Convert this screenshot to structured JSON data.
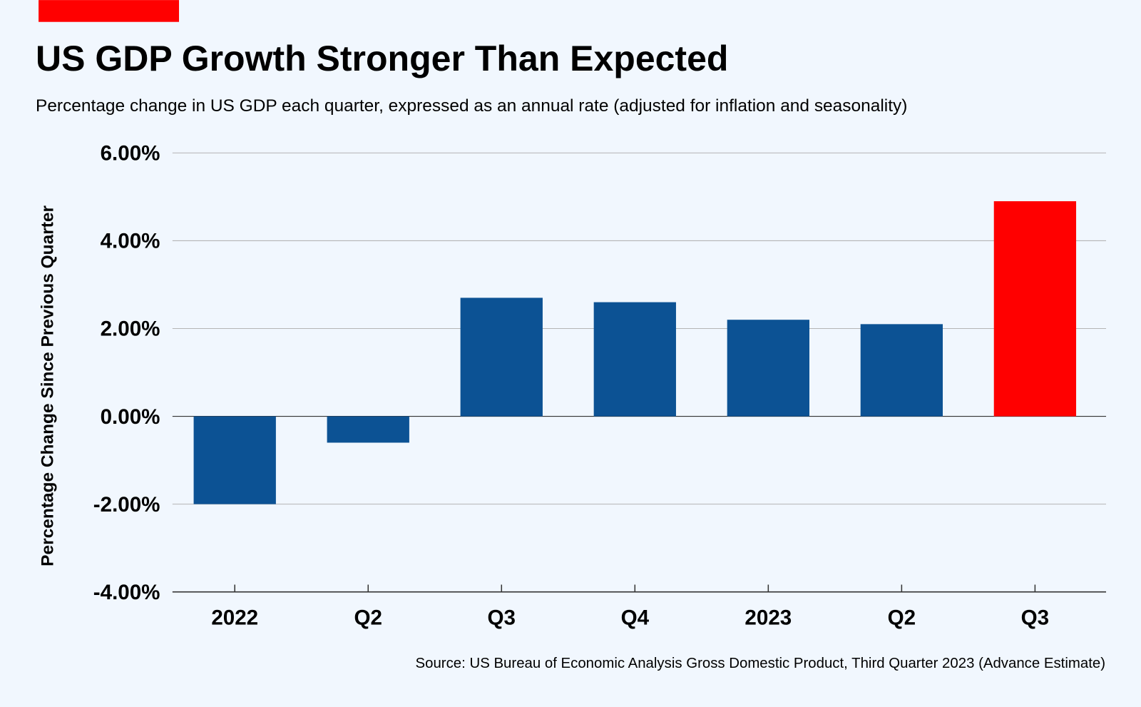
{
  "chart_data": {
    "type": "bar",
    "title": "US GDP Growth Stronger Than Expected",
    "subtitle": "Percentage change in US GDP each quarter, expressed as an annual rate (adjusted for inflation and seasonality)",
    "xlabel": "",
    "ylabel": "Percentage Change Since Previous Quarter",
    "categories": [
      "2022",
      "Q2",
      "Q3",
      "Q4",
      "2023",
      "Q2",
      "Q3"
    ],
    "values": [
      -2.0,
      -0.6,
      2.7,
      2.6,
      2.2,
      2.1,
      4.9
    ],
    "ylim": [
      -4,
      6
    ],
    "yticks": [
      6,
      4,
      2,
      0,
      -2,
      -4
    ],
    "ytick_labels": [
      "6.00%",
      "4.00%",
      "2.00%",
      "0.00%",
      "-2.00%",
      "-4.00%"
    ],
    "grid": true,
    "highlight_index": 6,
    "source": "Source: US Bureau of Economic Analysis Gross Domestic Product, Third Quarter 2023 (Advance Estimate)"
  },
  "colors": {
    "bar": "#0c5294",
    "highlight": "#ff0000",
    "accent": "#ff0000",
    "grid": "#b5b5b5",
    "axis": "#333333"
  }
}
